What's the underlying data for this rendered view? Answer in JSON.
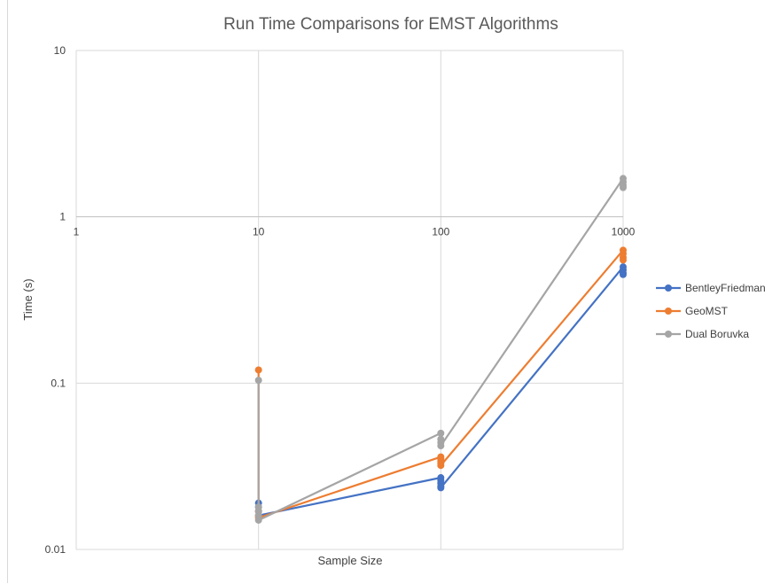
{
  "chart_data": {
    "type": "line",
    "title": "Run Time Comparisons for EMST Algorithms",
    "xlabel": "Sample Size",
    "ylabel": "Time (s)",
    "x_scale": "log",
    "y_scale": "log",
    "xlim": [
      1,
      1000
    ],
    "ylim": [
      0.01,
      10
    ],
    "x_ticks": [
      "1",
      "10",
      "100",
      "1000"
    ],
    "y_ticks": [
      "10",
      "1",
      "0.1",
      "0.01"
    ],
    "grid": true,
    "legend": "right",
    "x": [
      10,
      100,
      1000
    ],
    "series": [
      {
        "name": "BentleyFriedman",
        "color": "#4472c4",
        "values": [
          0.017,
          0.025,
          0.47
        ],
        "points": [
          [
            10,
            0.019
          ],
          [
            10,
            0.018
          ],
          [
            10,
            0.017
          ],
          [
            10,
            0.016
          ],
          [
            100,
            0.027
          ],
          [
            100,
            0.026
          ],
          [
            100,
            0.025
          ],
          [
            100,
            0.024
          ],
          [
            100,
            0.0235
          ],
          [
            1000,
            0.5
          ],
          [
            1000,
            0.48
          ],
          [
            1000,
            0.46
          ],
          [
            1000,
            0.45
          ]
        ]
      },
      {
        "name": "GeoMST",
        "color": "#ed7d31",
        "values": [
          0.016,
          0.034,
          0.55
        ],
        "points": [
          [
            10,
            0.12
          ],
          [
            10,
            0.017
          ],
          [
            10,
            0.016
          ],
          [
            10,
            0.0155
          ],
          [
            100,
            0.036
          ],
          [
            100,
            0.035
          ],
          [
            100,
            0.034
          ],
          [
            100,
            0.033
          ],
          [
            100,
            0.032
          ],
          [
            1000,
            0.63
          ],
          [
            1000,
            0.6
          ],
          [
            1000,
            0.57
          ],
          [
            1000,
            0.55
          ]
        ]
      },
      {
        "name": "Dual Boruvka",
        "color": "#a5a5a5",
        "values": [
          0.018,
          0.042,
          1.5
        ],
        "points": [
          [
            10,
            0.104
          ],
          [
            10,
            0.018
          ],
          [
            10,
            0.017
          ],
          [
            10,
            0.016
          ],
          [
            10,
            0.015
          ],
          [
            100,
            0.05
          ],
          [
            100,
            0.046
          ],
          [
            100,
            0.044
          ],
          [
            100,
            0.042
          ],
          [
            1000,
            1.7
          ],
          [
            1000,
            1.62
          ],
          [
            1000,
            1.55
          ],
          [
            1000,
            1.5
          ]
        ]
      }
    ]
  }
}
